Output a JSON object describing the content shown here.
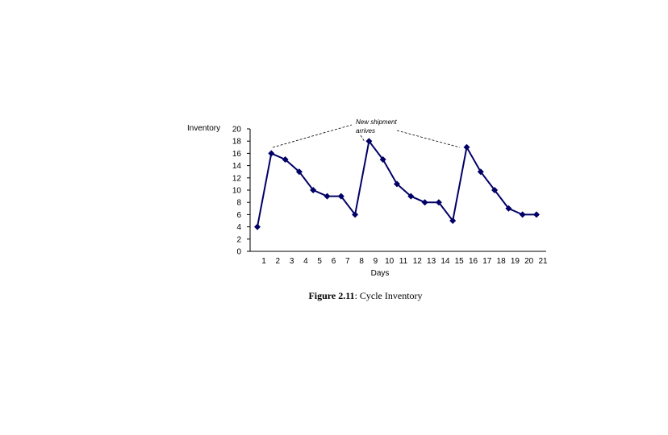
{
  "chart_data": {
    "type": "line",
    "title": "",
    "ylabel": "Inventory",
    "xlabel": "Days",
    "ylim": [
      0,
      20
    ],
    "yticks": [
      0,
      2,
      4,
      6,
      8,
      10,
      12,
      14,
      16,
      18,
      20
    ],
    "xticks": [
      1,
      2,
      3,
      4,
      5,
      6,
      7,
      8,
      9,
      10,
      11,
      12,
      13,
      14,
      15,
      16,
      17,
      18,
      19,
      20,
      21
    ],
    "series": [
      {
        "name": "Inventory",
        "color": "#000066",
        "values": [
          4,
          16,
          15,
          13,
          10,
          9,
          9,
          6,
          18,
          15,
          11,
          9,
          8,
          8,
          5,
          17,
          13,
          10,
          7,
          6,
          6
        ]
      }
    ],
    "annotation": {
      "text_line1": "New shipment",
      "text_line2": "arrives"
    }
  },
  "caption": {
    "label": "Figure 2.11",
    "text": ": Cycle Inventory"
  }
}
